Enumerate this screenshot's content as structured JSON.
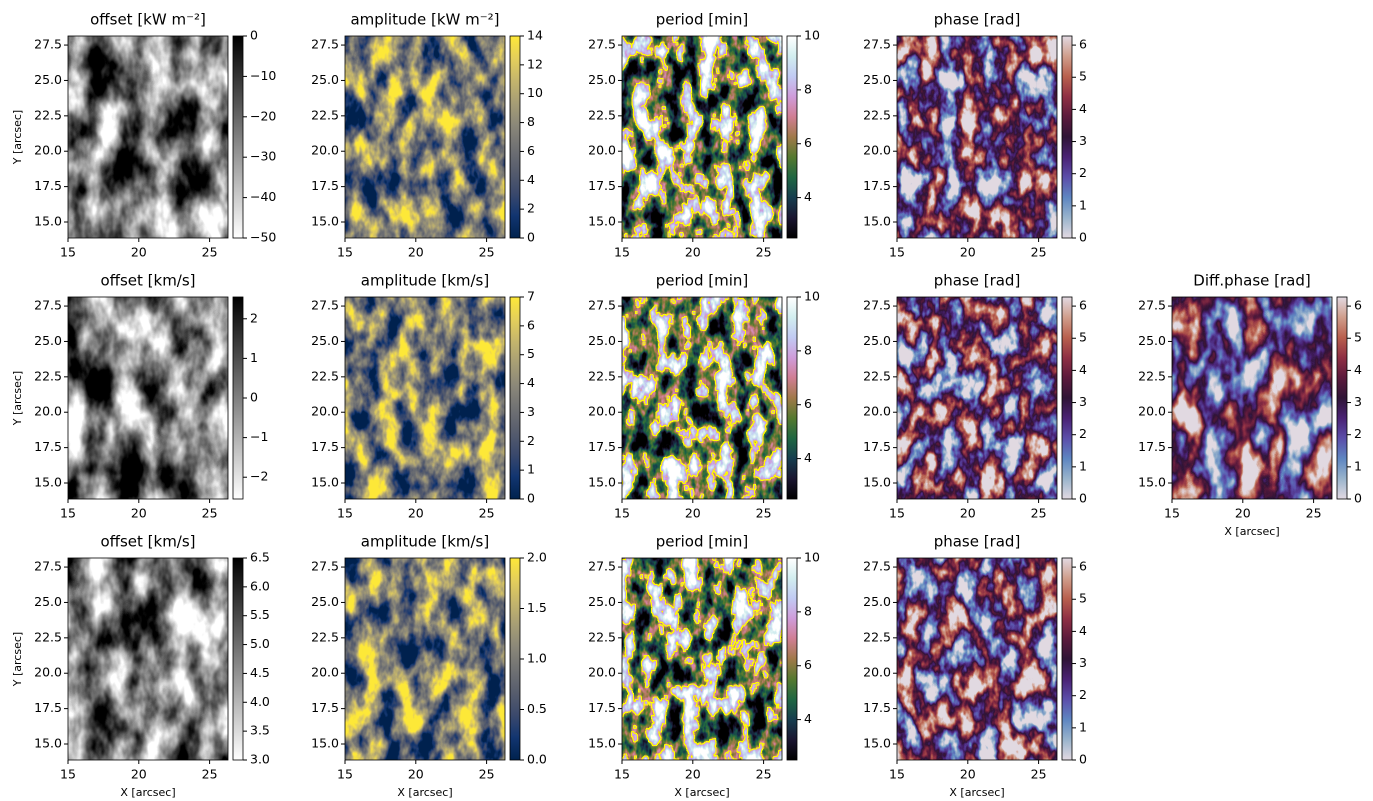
{
  "chart_data": [
    {
      "type": "heatmap",
      "title": "offset [kW m⁻²]",
      "ylabel": "Y [arcsec]",
      "xlim": [
        15,
        26.3
      ],
      "ylim": [
        13.87,
        28.14
      ],
      "xticks": [
        15,
        20,
        25
      ],
      "yticks": [
        {
          "value": 15,
          "label": "15.0"
        },
        17.5,
        {
          "value": 20,
          "label": "20.0"
        },
        22.5,
        {
          "value": 25,
          "label": "25.0"
        },
        27.5
      ],
      "clim": [
        -50,
        0
      ],
      "cticks": [
        {
          "value": -50,
          "label": "−50"
        },
        {
          "value": -40,
          "label": "−40"
        },
        {
          "value": -30,
          "label": "−30"
        },
        {
          "value": -20,
          "label": "−20"
        },
        {
          "value": -10,
          "label": "−10"
        },
        0
      ],
      "colormap": [
        "#ffffff",
        "#000000"
      ]
    },
    {
      "type": "heatmap",
      "title": "amplitude [kW m⁻²]",
      "xlim": [
        15,
        26.3
      ],
      "ylim": [
        13.87,
        28.14
      ],
      "xticks": [
        15,
        20,
        25
      ],
      "yticks": [
        {
          "value": 15,
          "label": "15.0"
        },
        17.5,
        {
          "value": 20,
          "label": "20.0"
        },
        22.5,
        {
          "value": 25,
          "label": "25.0"
        },
        27.5
      ],
      "clim": [
        0,
        14
      ],
      "cticks": [
        0,
        2,
        4,
        6,
        8,
        10,
        12,
        14
      ],
      "colormap": [
        "#00224e",
        "#123570",
        "#3b496c",
        "#575d6d",
        "#707173",
        "#8a8779",
        "#a69d75",
        "#c4b56c",
        "#e4cf5b",
        "#fee838"
      ]
    },
    {
      "type": "heatmap",
      "title": "period [min]",
      "xlim": [
        15,
        26.3
      ],
      "ylim": [
        13.87,
        28.14
      ],
      "xticks": [
        15,
        20,
        25
      ],
      "yticks": [
        {
          "value": 15,
          "label": "15.0"
        },
        17.5,
        {
          "value": 20,
          "label": "20.0"
        },
        22.5,
        {
          "value": 25,
          "label": "25.0"
        },
        27.5
      ],
      "clim": [
        2.5,
        10
      ],
      "cticks": [
        4,
        6,
        8,
        10
      ],
      "colormap": [
        "#000000",
        "#1a1530",
        "#163d4e",
        "#1f6642",
        "#54792f",
        "#a07949",
        "#d07e93",
        "#cf9cda",
        "#c1caf3",
        "#d2eeef",
        "#ffffff"
      ],
      "contour_color": "#ffff00"
    },
    {
      "type": "heatmap",
      "title": "phase [rad]",
      "xlim": [
        15,
        26.3
      ],
      "ylim": [
        13.87,
        28.14
      ],
      "xticks": [
        15,
        20,
        25
      ],
      "yticks": [
        {
          "value": 15,
          "label": "15.0"
        },
        17.5,
        {
          "value": 20,
          "label": "20.0"
        },
        22.5,
        {
          "value": 25,
          "label": "25.0"
        },
        27.5
      ],
      "clim": [
        0,
        6.283
      ],
      "cticks": [
        0,
        1,
        2,
        3,
        4,
        5,
        6
      ],
      "colormap": [
        "#e2d9e2",
        "#9ab4cc",
        "#5e86c1",
        "#5b4eaa",
        "#4a2274",
        "#2f1436",
        "#5b1a3c",
        "#8f2f44",
        "#b9604e",
        "#d09e8c",
        "#e2d9e2"
      ]
    },
    {
      "type": "heatmap",
      "title": "offset [km/s]",
      "ylabel": "Y [arcsec]",
      "xlim": [
        15,
        26.3
      ],
      "ylim": [
        13.87,
        28.14
      ],
      "xticks": [
        15,
        20,
        25
      ],
      "yticks": [
        {
          "value": 15,
          "label": "15.0"
        },
        17.5,
        {
          "value": 20,
          "label": "20.0"
        },
        22.5,
        {
          "value": 25,
          "label": "25.0"
        },
        27.5
      ],
      "clim": [
        -2.55,
        2.55
      ],
      "cticks": [
        {
          "value": -2,
          "label": "−2"
        },
        {
          "value": -1,
          "label": "−1"
        },
        0,
        1,
        2
      ],
      "colormap": [
        "#ffffff",
        "#000000"
      ]
    },
    {
      "type": "heatmap",
      "title": "amplitude [km/s]",
      "xlim": [
        15,
        26.3
      ],
      "ylim": [
        13.87,
        28.14
      ],
      "xticks": [
        15,
        20,
        25
      ],
      "yticks": [
        {
          "value": 15,
          "label": "15.0"
        },
        17.5,
        {
          "value": 20,
          "label": "20.0"
        },
        22.5,
        {
          "value": 25,
          "label": "25.0"
        },
        27.5
      ],
      "clim": [
        0,
        7
      ],
      "cticks": [
        0,
        1,
        2,
        3,
        4,
        5,
        6,
        7
      ],
      "colormap": [
        "#00224e",
        "#123570",
        "#3b496c",
        "#575d6d",
        "#707173",
        "#8a8779",
        "#a69d75",
        "#c4b56c",
        "#e4cf5b",
        "#fee838"
      ]
    },
    {
      "type": "heatmap",
      "title": "period [min]",
      "xlim": [
        15,
        26.3
      ],
      "ylim": [
        13.87,
        28.14
      ],
      "xticks": [
        15,
        20,
        25
      ],
      "yticks": [
        {
          "value": 15,
          "label": "15.0"
        },
        17.5,
        {
          "value": 20,
          "label": "20.0"
        },
        22.5,
        {
          "value": 25,
          "label": "25.0"
        },
        27.5
      ],
      "clim": [
        2.5,
        10
      ],
      "cticks": [
        4,
        6,
        8,
        10
      ],
      "colormap": [
        "#000000",
        "#1a1530",
        "#163d4e",
        "#1f6642",
        "#54792f",
        "#a07949",
        "#d07e93",
        "#cf9cda",
        "#c1caf3",
        "#d2eeef",
        "#ffffff"
      ],
      "contour_color": "#ffff00"
    },
    {
      "type": "heatmap",
      "title": "phase [rad]",
      "xlim": [
        15,
        26.3
      ],
      "ylim": [
        13.87,
        28.14
      ],
      "xticks": [
        15,
        20,
        25
      ],
      "yticks": [
        {
          "value": 15,
          "label": "15.0"
        },
        17.5,
        {
          "value": 20,
          "label": "20.0"
        },
        22.5,
        {
          "value": 25,
          "label": "25.0"
        },
        27.5
      ],
      "clim": [
        0,
        6.283
      ],
      "cticks": [
        0,
        1,
        2,
        3,
        4,
        5,
        6
      ],
      "colormap": [
        "#e2d9e2",
        "#9ab4cc",
        "#5e86c1",
        "#5b4eaa",
        "#4a2274",
        "#2f1436",
        "#5b1a3c",
        "#8f2f44",
        "#b9604e",
        "#d09e8c",
        "#e2d9e2"
      ]
    },
    {
      "type": "heatmap",
      "title": "Diff.phase [rad]",
      "xlabel": "X [arcsec]",
      "xlim": [
        15,
        26.3
      ],
      "ylim": [
        13.87,
        28.14
      ],
      "xticks": [
        15,
        20,
        25
      ],
      "yticks": [
        {
          "value": 15,
          "label": "15.0"
        },
        17.5,
        {
          "value": 20,
          "label": "20.0"
        },
        22.5,
        {
          "value": 25,
          "label": "25.0"
        },
        27.5
      ],
      "clim": [
        0,
        6.283
      ],
      "cticks": [
        0,
        1,
        2,
        3,
        4,
        5,
        6
      ],
      "colormap": [
        "#e2d9e2",
        "#9ab4cc",
        "#5e86c1",
        "#5b4eaa",
        "#4a2274",
        "#2f1436",
        "#5b1a3c",
        "#8f2f44",
        "#b9604e",
        "#d09e8c",
        "#e2d9e2"
      ]
    },
    {
      "type": "heatmap",
      "title": "offset [km/s]",
      "xlabel": "X [arcsec]",
      "ylabel": "Y [arcsec]",
      "xlim": [
        15,
        26.3
      ],
      "ylim": [
        13.87,
        28.14
      ],
      "xticks": [
        15,
        20,
        25
      ],
      "yticks": [
        {
          "value": 15,
          "label": "15.0"
        },
        17.5,
        {
          "value": 20,
          "label": "20.0"
        },
        22.5,
        {
          "value": 25,
          "label": "25.0"
        },
        27.5
      ],
      "clim": [
        3,
        6.5
      ],
      "cticks": [
        {
          "value": 3,
          "label": "3.0"
        },
        3.5,
        {
          "value": 4,
          "label": "4.0"
        },
        4.5,
        {
          "value": 5,
          "label": "5.0"
        },
        5.5,
        {
          "value": 6,
          "label": "6.0"
        },
        6.5
      ],
      "colormap": [
        "#ffffff",
        "#000000"
      ]
    },
    {
      "type": "heatmap",
      "title": "amplitude [km/s]",
      "xlabel": "X [arcsec]",
      "xlim": [
        15,
        26.3
      ],
      "ylim": [
        13.87,
        28.14
      ],
      "xticks": [
        15,
        20,
        25
      ],
      "yticks": [
        {
          "value": 15,
          "label": "15.0"
        },
        17.5,
        {
          "value": 20,
          "label": "20.0"
        },
        22.5,
        {
          "value": 25,
          "label": "25.0"
        },
        27.5
      ],
      "clim": [
        0,
        2
      ],
      "cticks": [
        {
          "value": 0,
          "label": "0.0"
        },
        0.5,
        {
          "value": 1,
          "label": "1.0"
        },
        1.5,
        {
          "value": 2,
          "label": "2.0"
        }
      ],
      "colormap": [
        "#00224e",
        "#123570",
        "#3b496c",
        "#575d6d",
        "#707173",
        "#8a8779",
        "#a69d75",
        "#c4b56c",
        "#e4cf5b",
        "#fee838"
      ]
    },
    {
      "type": "heatmap",
      "title": "period [min]",
      "xlabel": "X [arcsec]",
      "xlim": [
        15,
        26.3
      ],
      "ylim": [
        13.87,
        28.14
      ],
      "xticks": [
        15,
        20,
        25
      ],
      "yticks": [
        {
          "value": 15,
          "label": "15.0"
        },
        17.5,
        {
          "value": 20,
          "label": "20.0"
        },
        22.5,
        {
          "value": 25,
          "label": "25.0"
        },
        27.5
      ],
      "clim": [
        2.5,
        10
      ],
      "cticks": [
        4,
        6,
        8,
        10
      ],
      "colormap": [
        "#000000",
        "#1a1530",
        "#163d4e",
        "#1f6642",
        "#54792f",
        "#a07949",
        "#d07e93",
        "#cf9cda",
        "#c1caf3",
        "#d2eeef",
        "#ffffff"
      ],
      "contour_color": "#ffff00"
    },
    {
      "type": "heatmap",
      "title": "phase [rad]",
      "xlabel": "X [arcsec]",
      "xlim": [
        15,
        26.3
      ],
      "ylim": [
        13.87,
        28.14
      ],
      "xticks": [
        15,
        20,
        25
      ],
      "yticks": [
        {
          "value": 15,
          "label": "15.0"
        },
        17.5,
        {
          "value": 20,
          "label": "20.0"
        },
        22.5,
        {
          "value": 25,
          "label": "25.0"
        },
        27.5
      ],
      "clim": [
        0,
        6.283
      ],
      "cticks": [
        0,
        1,
        2,
        3,
        4,
        5,
        6
      ],
      "colormap": [
        "#e2d9e2",
        "#9ab4cc",
        "#5e86c1",
        "#5b4eaa",
        "#4a2274",
        "#2f1436",
        "#5b1a3c",
        "#8f2f44",
        "#b9604e",
        "#d09e8c",
        "#e2d9e2"
      ]
    }
  ]
}
